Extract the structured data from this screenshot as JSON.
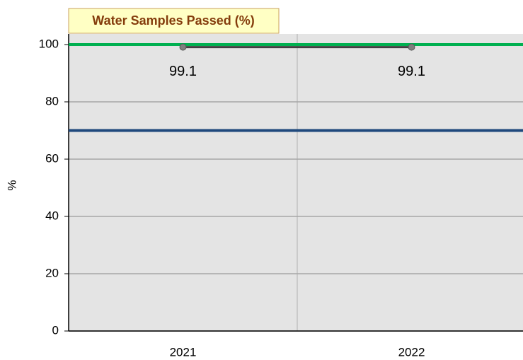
{
  "chart_data": {
    "type": "line",
    "title": "Water Samples Passed (%)",
    "y_label": "%",
    "categories": [
      "2021",
      "2022"
    ],
    "series": [
      {
        "color": "#404040",
        "values": [
          99.1,
          99.1
        ]
      }
    ],
    "reference_lines": [
      {
        "value": 100,
        "color": "#00b050"
      },
      {
        "value": 70,
        "color": "#1f497d"
      }
    ],
    "ylim": [
      0,
      100
    ],
    "yticks": [
      0,
      20,
      40,
      60,
      80,
      100
    ],
    "grid": true
  }
}
